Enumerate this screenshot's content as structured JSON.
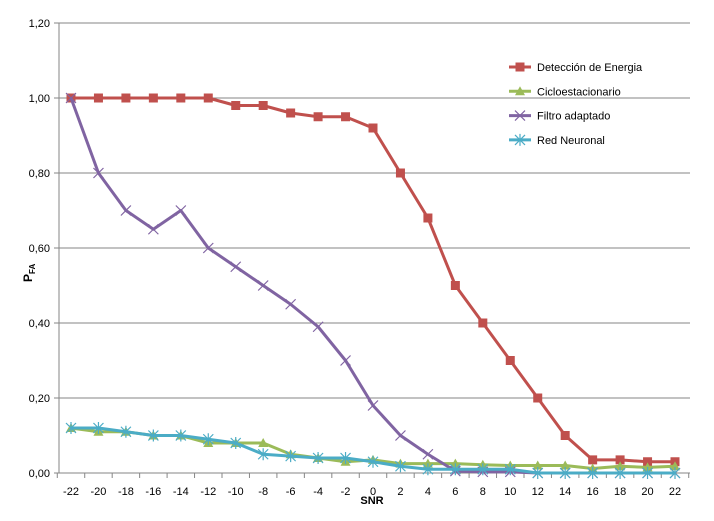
{
  "chart_data": {
    "type": "line",
    "title": "",
    "xlabel": "SNR",
    "ylabel_main": "P",
    "ylabel_sub": "FA",
    "ylim": [
      0,
      1.2
    ],
    "grid": true,
    "legend_position": "top-right",
    "x": [
      -22,
      -20,
      -18,
      -16,
      -14,
      -12,
      -10,
      -8,
      -6,
      -4,
      -2,
      0,
      2,
      4,
      6,
      8,
      10,
      12,
      14,
      16,
      18,
      20,
      22
    ],
    "x_tick_labels": [
      "-22",
      "-20",
      "-18",
      "-16",
      "-14",
      "-12",
      "-10",
      "-8",
      "-6",
      "-4",
      "-2",
      "0",
      "2",
      "4",
      "6",
      "8",
      "10",
      "12",
      "14",
      "16",
      "18",
      "20",
      "22"
    ],
    "y_ticks": [
      0,
      0.2,
      0.4,
      0.6,
      0.8,
      1.0,
      1.2
    ],
    "y_tick_labels": [
      "0,00",
      "0,20",
      "0,40",
      "0,60",
      "0,80",
      "1,00",
      "1,20"
    ],
    "series": [
      {
        "name": "Detección de Energia",
        "color": "#c0504d",
        "marker": "square",
        "values": [
          1,
          1,
          1,
          1,
          1,
          1,
          0.98,
          0.98,
          0.96,
          0.95,
          0.95,
          0.92,
          0.8,
          0.68,
          0.5,
          0.4,
          0.3,
          0.2,
          0.1,
          0.035,
          0.035,
          0.03,
          0.03
        ]
      },
      {
        "name": "Cicloestacionario",
        "color": "#9bbb59",
        "marker": "triangle",
        "values": [
          0.12,
          0.11,
          0.11,
          0.1,
          0.1,
          0.08,
          0.08,
          0.08,
          0.05,
          0.04,
          0.03,
          0.035,
          0.025,
          0.025,
          0.025,
          0.022,
          0.02,
          0.02,
          0.02,
          0.012,
          0.018,
          0.015,
          0.018
        ]
      },
      {
        "name": "Filtro adaptado",
        "color": "#8064a2",
        "marker": "x",
        "values": [
          1.0,
          0.8,
          0.7,
          0.65,
          0.7,
          0.6,
          0.55,
          0.5,
          0.45,
          0.39,
          0.3,
          0.18,
          0.1,
          0.05,
          0.005,
          0.003,
          0.003,
          0,
          0,
          0,
          0,
          0,
          0
        ]
      },
      {
        "name": "Red Neuronal",
        "color": "#4bacc6",
        "marker": "star",
        "values": [
          0.12,
          0.12,
          0.11,
          0.1,
          0.1,
          0.09,
          0.08,
          0.05,
          0.045,
          0.04,
          0.04,
          0.03,
          0.018,
          0.01,
          0.01,
          0.01,
          0.01,
          0,
          0,
          0,
          0,
          0,
          0
        ]
      }
    ]
  }
}
